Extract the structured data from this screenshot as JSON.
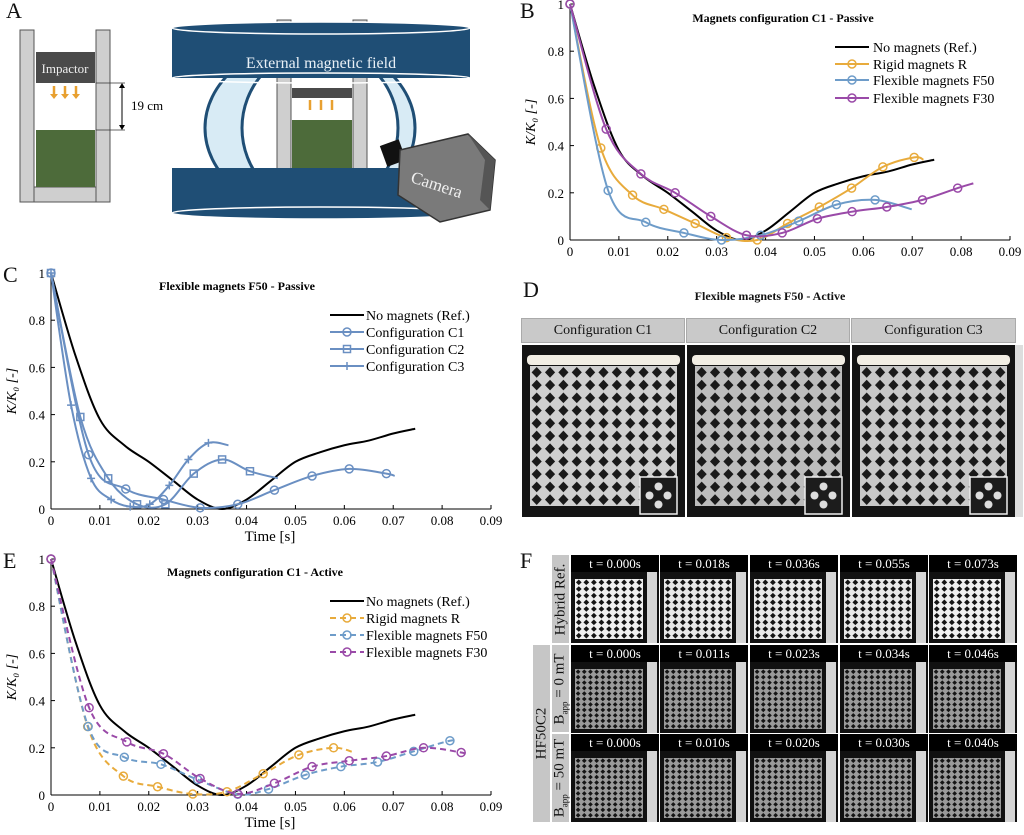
{
  "panel_letters": {
    "a": "A",
    "b": "B",
    "c": "C",
    "d": "D",
    "e": "E",
    "f": "F"
  },
  "panel_a": {
    "impactor_label": "Impactor",
    "distance_label": "19 cm",
    "field_label": "External magnetic field",
    "camera_label": "Camera"
  },
  "panel_d": {
    "title": "Flexible magnets F50 - Active",
    "columns": [
      "Configuration C1",
      "Configuration C2",
      "Configuration C3"
    ]
  },
  "panel_f": {
    "group_label": "HF50C2",
    "row_labels": [
      "Hybrid Ref.",
      "B",
      "B"
    ],
    "row_label_subscripts": [
      "",
      "app",
      "app"
    ],
    "row_label_suffixes": [
      "",
      " = 0 mT",
      " = 50 mT"
    ],
    "rows": [
      [
        "t = 0.000s",
        "t = 0.018s",
        "t = 0.036s",
        "t = 0.055s",
        "t = 0.073s"
      ],
      [
        "t = 0.000s",
        "t = 0.011s",
        "t = 0.023s",
        "t = 0.034s",
        "t = 0.046s"
      ],
      [
        "t = 0.000s",
        "t = 0.010s",
        "t = 0.020s",
        "t = 0.030s",
        "t = 0.040s"
      ]
    ]
  },
  "colors": {
    "reference": "#000000",
    "rigid": "#e8ab3c",
    "f50": "#6e9cc9",
    "f30": "#9a4aa8",
    "config": "#6a8fc2",
    "field_band": "#1f4e75",
    "lattice": "#4d6b3a"
  },
  "chart_data": [
    {
      "panel": "B",
      "type": "line",
      "title": "Magnets configuration C1 - Passive",
      "xlabel": "",
      "ylabel": "K/K₀ [-]",
      "xlim": [
        0,
        0.09
      ],
      "ylim": [
        0,
        1
      ],
      "xticks": [
        "0",
        "0.01",
        "0.02",
        "0.03",
        "0.04",
        "0.05",
        "0.06",
        "0.07",
        "0.08",
        "0.09"
      ],
      "yticks": [
        "0",
        "0.2",
        "0.4",
        "0.6",
        "0.8",
        "1"
      ],
      "legend": "top-right",
      "grid": false,
      "series": [
        {
          "name": "No magnets (Ref.)",
          "color": "#000000",
          "marker": "none",
          "dashed": false,
          "x": [
            0,
            0.005,
            0.01,
            0.015,
            0.02,
            0.025,
            0.03,
            0.035,
            0.04,
            0.045,
            0.05,
            0.055,
            0.06,
            0.065,
            0.07,
            0.0745
          ],
          "y": [
            1,
            0.65,
            0.38,
            0.27,
            0.2,
            0.12,
            0.04,
            0.0,
            0.04,
            0.12,
            0.2,
            0.24,
            0.27,
            0.29,
            0.32,
            0.34
          ]
        },
        {
          "name": "Rigid magnets R",
          "color": "#e8ab3c",
          "marker": "circle",
          "dashed": false,
          "x": [
            0,
            0.0063,
            0.0128,
            0.0192,
            0.0256,
            0.032,
            0.0383,
            0.0445,
            0.051,
            0.0576,
            0.064,
            0.0704,
            0.0723
          ],
          "y": [
            1,
            0.39,
            0.19,
            0.13,
            0.07,
            0.01,
            0.0,
            0.07,
            0.14,
            0.22,
            0.31,
            0.35,
            0.34
          ]
        },
        {
          "name": "Flexible magnets F50",
          "color": "#6e9cc9",
          "marker": "circle",
          "dashed": false,
          "x": [
            0,
            0.0078,
            0.0155,
            0.0233,
            0.031,
            0.039,
            0.0468,
            0.0545,
            0.0624,
            0.0699
          ],
          "y": [
            1,
            0.21,
            0.075,
            0.03,
            0.0,
            0.02,
            0.08,
            0.15,
            0.17,
            0.13
          ]
        },
        {
          "name": "Flexible magnets F30",
          "color": "#9a4aa8",
          "marker": "circle",
          "dashed": false,
          "x": [
            0,
            0.0074,
            0.0145,
            0.0215,
            0.0288,
            0.0361,
            0.0434,
            0.0506,
            0.0577,
            0.0648,
            0.0721,
            0.0793,
            0.0825
          ],
          "y": [
            1,
            0.47,
            0.28,
            0.2,
            0.1,
            0.02,
            0.03,
            0.09,
            0.12,
            0.14,
            0.17,
            0.22,
            0.24
          ]
        }
      ]
    },
    {
      "panel": "C",
      "type": "line",
      "title": "Flexible magnets F50 - Passive",
      "xlabel": "Time [s]",
      "ylabel": "K/K₀ [-]",
      "xlim": [
        0,
        0.09
      ],
      "ylim": [
        0,
        1
      ],
      "xticks": [
        "0",
        "0.01",
        "0.02",
        "0.03",
        "0.04",
        "0.05",
        "0.06",
        "0.07",
        "0.08",
        "0.09"
      ],
      "yticks": [
        "0",
        "0.2",
        "0.4",
        "0.6",
        "0.8",
        "1"
      ],
      "legend": "top-right",
      "grid": false,
      "series": [
        {
          "name": "No magnets (Ref.)",
          "color": "#000000",
          "marker": "none",
          "dashed": false,
          "x": [
            0,
            0.005,
            0.01,
            0.015,
            0.02,
            0.025,
            0.03,
            0.035,
            0.04,
            0.045,
            0.05,
            0.055,
            0.06,
            0.065,
            0.07,
            0.0745
          ],
          "y": [
            1,
            0.65,
            0.38,
            0.27,
            0.2,
            0.12,
            0.04,
            0.0,
            0.04,
            0.12,
            0.2,
            0.24,
            0.27,
            0.29,
            0.32,
            0.34
          ]
        },
        {
          "name": "Configuration C1",
          "color": "#6a8fc2",
          "marker": "circle",
          "dashed": false,
          "x": [
            0,
            0.0077,
            0.0153,
            0.023,
            0.0305,
            0.0382,
            0.0457,
            0.0534,
            0.061,
            0.0686,
            0.0703
          ],
          "y": [
            1,
            0.23,
            0.085,
            0.04,
            0.005,
            0.02,
            0.08,
            0.14,
            0.17,
            0.15,
            0.14
          ]
        },
        {
          "name": "Configuration C2",
          "color": "#6a8fc2",
          "marker": "square",
          "dashed": false,
          "x": [
            0,
            0.006,
            0.0117,
            0.0176,
            0.0234,
            0.0292,
            0.035,
            0.0407,
            0.0464
          ],
          "y": [
            1,
            0.39,
            0.13,
            0.02,
            0.02,
            0.15,
            0.21,
            0.16,
            0.13
          ]
        },
        {
          "name": "Configuration C3",
          "color": "#6a8fc2",
          "marker": "plus",
          "dashed": false,
          "x": [
            0,
            0.0041,
            0.0082,
            0.0123,
            0.0162,
            0.0202,
            0.0242,
            0.0281,
            0.0322,
            0.0363
          ],
          "y": [
            1,
            0.44,
            0.13,
            0.04,
            0.01,
            0.02,
            0.1,
            0.21,
            0.28,
            0.27
          ]
        }
      ]
    },
    {
      "panel": "E",
      "type": "line",
      "title": "Magnets configuration C1 - Active",
      "xlabel": "Time [s]",
      "ylabel": "K/K₀ [-]",
      "xlim": [
        0,
        0.09
      ],
      "ylim": [
        0,
        1
      ],
      "xticks": [
        "0",
        "0.01",
        "0.02",
        "0.03",
        "0.04",
        "0.05",
        "0.06",
        "0.07",
        "0.08",
        "0.09"
      ],
      "yticks": [
        "0",
        "0.2",
        "0.4",
        "0.6",
        "0.8",
        "1"
      ],
      "legend": "top-right",
      "grid": false,
      "series": [
        {
          "name": "No magnets (Ref.)",
          "color": "#000000",
          "marker": "none",
          "dashed": false,
          "x": [
            0,
            0.005,
            0.01,
            0.015,
            0.02,
            0.025,
            0.03,
            0.035,
            0.04,
            0.045,
            0.05,
            0.055,
            0.06,
            0.065,
            0.07,
            0.0745
          ],
          "y": [
            1,
            0.65,
            0.38,
            0.27,
            0.2,
            0.12,
            0.04,
            0.0,
            0.04,
            0.12,
            0.2,
            0.24,
            0.27,
            0.29,
            0.32,
            0.34
          ]
        },
        {
          "name": "Rigid magnets R",
          "color": "#e8ab3c",
          "marker": "circle",
          "dashed": true,
          "x": [
            0,
            0.0075,
            0.0148,
            0.0218,
            0.029,
            0.036,
            0.0434,
            0.0507,
            0.0578,
            0.062
          ],
          "y": [
            1,
            0.29,
            0.08,
            0.035,
            0.004,
            0.014,
            0.09,
            0.17,
            0.2,
            0.18
          ]
        },
        {
          "name": "Flexible magnets F50",
          "color": "#6e9cc9",
          "marker": "circle",
          "dashed": true,
          "x": [
            0,
            0.0076,
            0.015,
            0.0225,
            0.03,
            0.0382,
            0.0445,
            0.052,
            0.0593,
            0.0668,
            0.0742,
            0.0816,
            0.0828
          ],
          "y": [
            1,
            0.29,
            0.16,
            0.13,
            0.065,
            0.003,
            0.025,
            0.085,
            0.12,
            0.14,
            0.185,
            0.23,
            0.22
          ]
        },
        {
          "name": "Flexible magnets F30",
          "color": "#9a4aa8",
          "marker": "circle",
          "dashed": true,
          "x": [
            0,
            0.0078,
            0.0155,
            0.023,
            0.0305,
            0.0382,
            0.0457,
            0.0534,
            0.061,
            0.0686,
            0.0762,
            0.0839,
            0.085
          ],
          "y": [
            1,
            0.37,
            0.225,
            0.175,
            0.07,
            0.005,
            0.05,
            0.12,
            0.145,
            0.165,
            0.2,
            0.18,
            0.17
          ]
        }
      ]
    }
  ]
}
